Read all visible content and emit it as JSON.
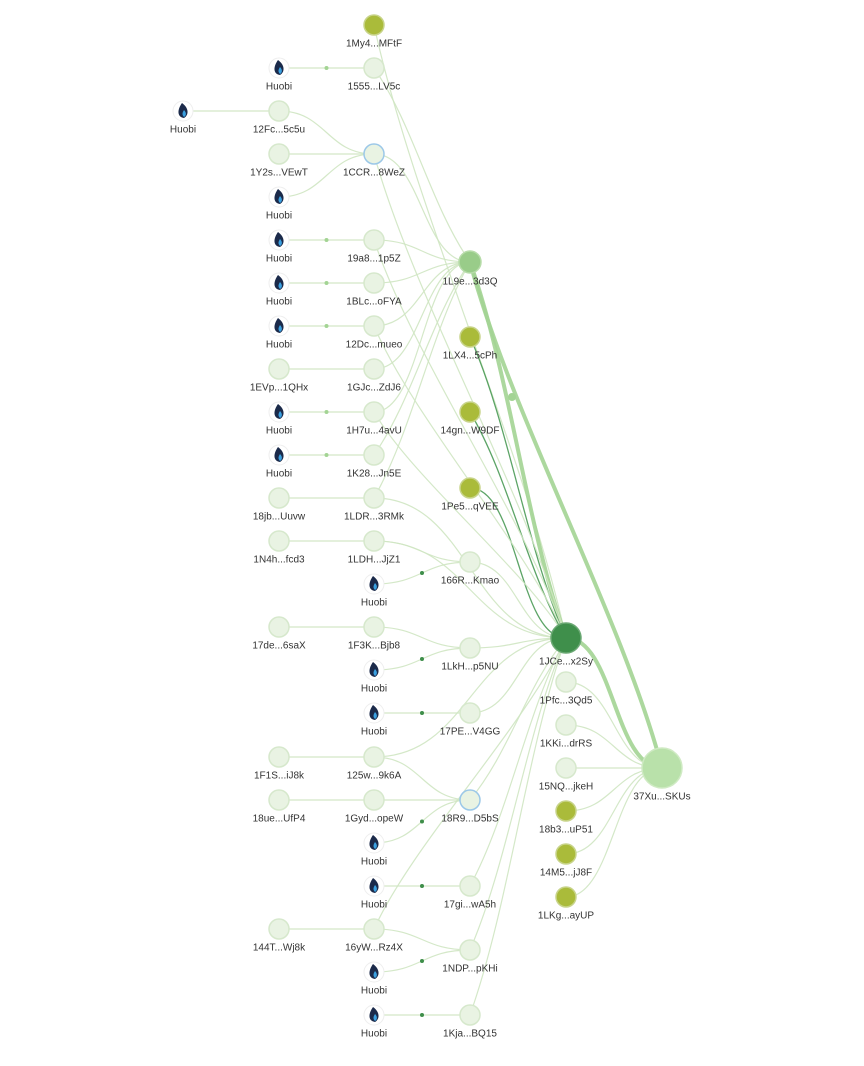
{
  "nodes": [
    {
      "label": "1My4...MFtF"
    },
    {
      "label": "1555...LV5c"
    },
    {
      "label": "Huobi"
    },
    {
      "label": "12Fc...5c5u"
    },
    {
      "label": "Huobi"
    },
    {
      "label": "1Y2s...VEwT"
    },
    {
      "label": "1CCR...8WeZ"
    },
    {
      "label": "Huobi"
    },
    {
      "label": "Huobi"
    },
    {
      "label": "19a8...1p5Z"
    },
    {
      "label": "Huobi"
    },
    {
      "label": "1BLc...oFYA"
    },
    {
      "label": "Huobi"
    },
    {
      "label": "12Dc...mueo"
    },
    {
      "label": "1EVp...1QHx"
    },
    {
      "label": "1GJc...ZdJ6"
    },
    {
      "label": "Huobi"
    },
    {
      "label": "1H7u...4avU"
    },
    {
      "label": "Huobi"
    },
    {
      "label": "1K28...Jn5E"
    },
    {
      "label": "18jb...Uuvw"
    },
    {
      "label": "1LDR...3RMk"
    },
    {
      "label": "1L9e...3d3Q"
    },
    {
      "label": "1LX4...5cPh"
    },
    {
      "label": "14gn...W9DF"
    },
    {
      "label": "1Pe5...qVEE"
    },
    {
      "label": "1N4h...fcd3"
    },
    {
      "label": "1LDH...JjZ1"
    },
    {
      "label": "Huobi"
    },
    {
      "label": "166R...Kmao"
    },
    {
      "label": "17de...6saX"
    },
    {
      "label": "1F3K...Bjb8"
    },
    {
      "label": "Huobi"
    },
    {
      "label": "1LkH...p5NU"
    },
    {
      "label": "Huobi"
    },
    {
      "label": "17PE...V4GG"
    },
    {
      "label": "1JCe...x2Sy"
    },
    {
      "label": "1F1S...iJ8k"
    },
    {
      "label": "125w...9k6A"
    },
    {
      "label": "18ue...UfP4"
    },
    {
      "label": "1Gyd...opeW"
    },
    {
      "label": "Huobi"
    },
    {
      "label": "18R9...D5bS"
    },
    {
      "label": "Huobi"
    },
    {
      "label": "17gi...wA5h"
    },
    {
      "label": "144T...Wj8k"
    },
    {
      "label": "16yW...Rz4X"
    },
    {
      "label": "Huobi"
    },
    {
      "label": "1NDP...pKHi"
    },
    {
      "label": "Huobi"
    },
    {
      "label": "1Kja...BQ15"
    },
    {
      "label": "1Pfc...3Qd5"
    },
    {
      "label": "1KKi...drRS"
    },
    {
      "label": "15NQ...jkeH"
    },
    {
      "label": "18b3...uP51"
    },
    {
      "label": "14M5...jJ8F"
    },
    {
      "label": "1LKg...ayUP"
    },
    {
      "label": "37Xu...SKUs"
    }
  ]
}
